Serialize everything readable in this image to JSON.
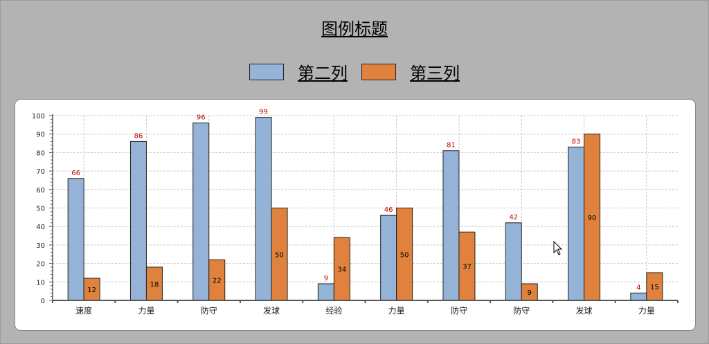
{
  "chart_title": "图例标题",
  "chart_data": {
    "type": "bar",
    "title": "图例标题",
    "xlabel": "",
    "ylabel": "",
    "categories": [
      "速度",
      "力量",
      "防守",
      "发球",
      "经验",
      "力量",
      "防守",
      "防守",
      "发球",
      "力量"
    ],
    "series": [
      {
        "name": "第二列",
        "color": "#95b3d7",
        "values": [
          66,
          86,
          96,
          99,
          9,
          46,
          81,
          42,
          83,
          4
        ]
      },
      {
        "name": "第三列",
        "color": "#e0823d",
        "values": [
          12,
          18,
          22,
          50,
          34,
          50,
          37,
          9,
          90,
          15
        ]
      }
    ],
    "ylim": [
      0,
      100
    ],
    "yticks": [
      0,
      10,
      20,
      30,
      40,
      50,
      60,
      70,
      80,
      90,
      100
    ],
    "grid": true,
    "legend_position": "top-center",
    "label_color_series1": "#c00000",
    "label_color_series2": "#000000"
  }
}
